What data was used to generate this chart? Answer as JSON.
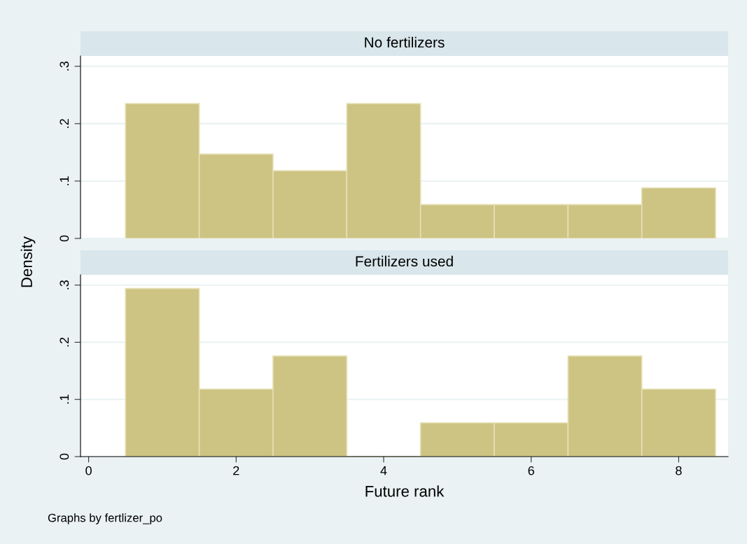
{
  "chart_data": [
    {
      "type": "histogram",
      "title": "No fertilizers",
      "ylabel": "Density",
      "bins": [
        0.5,
        1.5,
        2.5,
        3.5,
        4.5,
        5.5,
        6.5,
        7.5,
        8.5
      ],
      "values": [
        0.235,
        0.147,
        0.118,
        0.235,
        0.059,
        0.059,
        0.059,
        0.088
      ],
      "color": "#cdc383",
      "xlim": [
        -0.11,
        8.67
      ],
      "ylim": [
        0,
        0.318
      ],
      "yticks": [
        {
          "value": 0,
          "label": "0"
        },
        {
          "value": 0.1,
          "label": ".1"
        },
        {
          "value": 0.2,
          "label": ".2"
        },
        {
          "value": 0.3,
          "label": ".3"
        }
      ],
      "grid": "y",
      "tick_labels": "y"
    },
    {
      "type": "histogram",
      "title": "Fertilizers used",
      "xlabel": "Future rank",
      "bins": [
        0.5,
        1.5,
        2.5,
        3.5,
        4.5,
        5.5,
        6.5,
        7.5,
        8.5
      ],
      "values": [
        0.294,
        0.118,
        0.176,
        0,
        0.059,
        0.059,
        0.176,
        0.118
      ],
      "color": "#cdc383",
      "xlim": [
        -0.11,
        8.67
      ],
      "ylim": [
        0,
        0.318
      ],
      "xticks": [
        0,
        2,
        4,
        6,
        8
      ],
      "yticks": [
        {
          "value": 0,
          "label": "0"
        },
        {
          "value": 0.1,
          "label": ".1"
        },
        {
          "value": 0.2,
          "label": ".2"
        },
        {
          "value": 0.3,
          "label": ".3"
        }
      ],
      "grid": "y",
      "annotations": [
        "Graphs by fertlizer_po"
      ]
    }
  ]
}
